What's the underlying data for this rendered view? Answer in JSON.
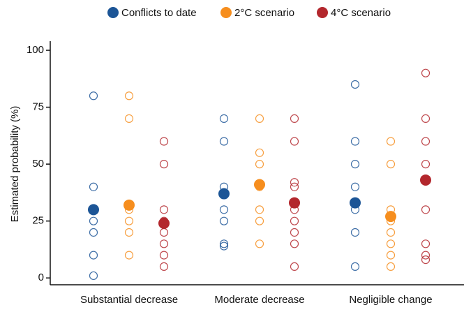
{
  "chart_data": {
    "type": "dot",
    "y_label": "Estimated probability (%)",
    "categories": [
      "Substantial decrease",
      "Moderate decrease",
      "Negligible change"
    ],
    "ylim": [
      -3,
      104
    ],
    "yticks": [
      0,
      25,
      50,
      75,
      100
    ],
    "series": [
      {
        "name": "Conflicts to date",
        "color": "#1c5596",
        "values": [
          30,
          37,
          33
        ],
        "points": [
          [
            80,
            40,
            25,
            20,
            10,
            1
          ],
          [
            70,
            60,
            40,
            30,
            25,
            15,
            14
          ],
          [
            85,
            60,
            50,
            40,
            30,
            20,
            5
          ]
        ]
      },
      {
        "name": "2°C scenario",
        "color": "#f68e1e",
        "values": [
          32,
          41,
          27
        ],
        "points": [
          [
            80,
            70,
            30,
            25,
            20,
            10
          ],
          [
            70,
            55,
            50,
            40,
            30,
            25,
            15
          ],
          [
            60,
            50,
            30,
            25,
            20,
            15,
            10,
            5
          ]
        ]
      },
      {
        "name": "4°C scenario",
        "color": "#b3272d",
        "values": [
          24,
          33,
          43
        ],
        "points": [
          [
            60,
            50,
            30,
            25,
            20,
            15,
            10,
            5
          ],
          [
            70,
            60,
            42,
            40,
            30,
            25,
            20,
            15,
            5
          ],
          [
            90,
            70,
            60,
            50,
            30,
            15,
            10,
            8
          ]
        ]
      }
    ]
  }
}
